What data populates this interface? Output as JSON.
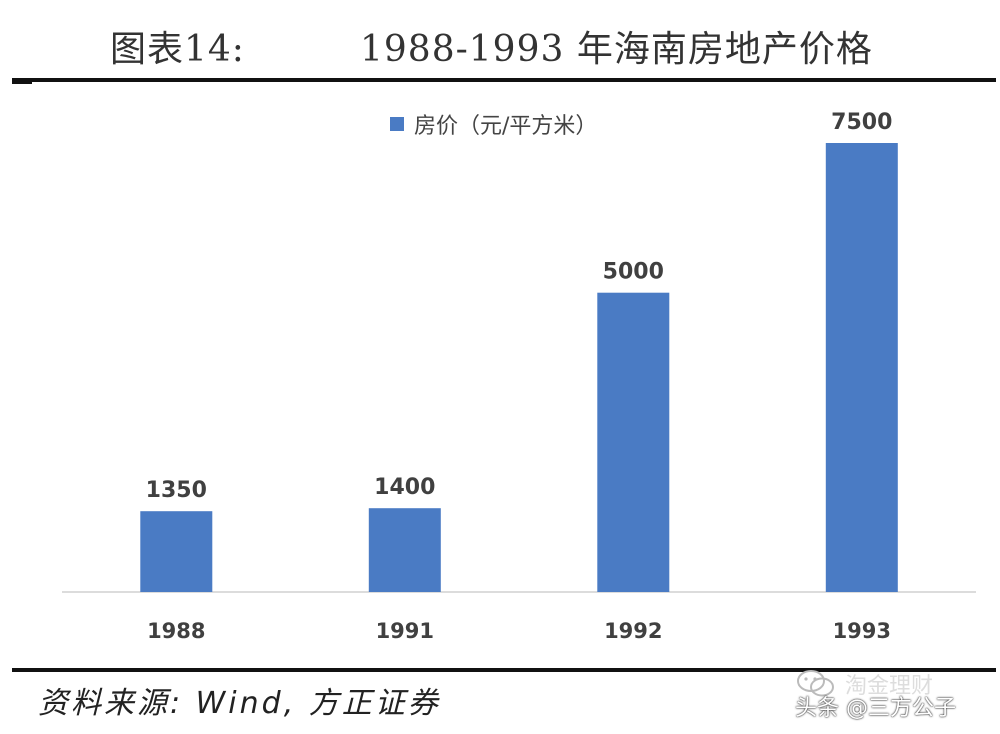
{
  "header": {
    "prefix": "图表14:",
    "title": "1988-1993 年海南房地产价格"
  },
  "chart_data": {
    "type": "bar",
    "categories": [
      "1988",
      "1991",
      "1992",
      "1993"
    ],
    "series": [
      {
        "name": "房价（元/平方米）",
        "values": [
          1350,
          1400,
          5000,
          7500
        ]
      }
    ],
    "data_labels": [
      "1350",
      "1400",
      "5000",
      "7500"
    ],
    "legend_position": "top",
    "grid": false,
    "ylim": [
      0,
      7500
    ],
    "colors": {
      "bar": "#4a7bc4",
      "axis": "#d0d0d0",
      "label": "#404040"
    }
  },
  "footer": {
    "source": "资料来源: Wind, 方正证券"
  },
  "watermark": {
    "text": "头条 @三方公子",
    "ghost_text": "淘金理财",
    "icon": "wechat-icon"
  }
}
